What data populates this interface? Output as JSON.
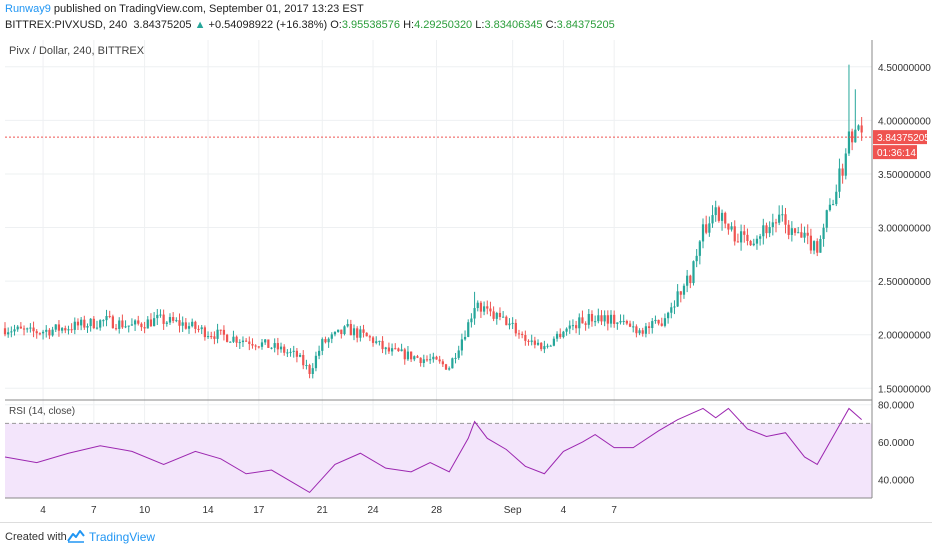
{
  "header": {
    "author": "Runway9",
    "published": "published on TradingView.com, September 01, 2017 13:23 EST",
    "symbol": "BITTREX:PIVXUSD, 240",
    "last": "3.84375205",
    "change": "+0.54098922 (+16.38%)",
    "o_label": "O:",
    "o_val": "3.95538576",
    "h_label": "H:",
    "h_val": "4.29250320",
    "l_label": "L:",
    "l_val": "3.83406345",
    "c_label": "C:",
    "c_val": "3.84375205"
  },
  "footer": {
    "created_with": "Created with",
    "brand": "TradingView"
  },
  "colors": {
    "up": "#26a69a",
    "down": "#ef5350",
    "rsi": "#9c27b0",
    "last": "#ef5350"
  },
  "chart_data": [
    {
      "type": "candlestick",
      "title": "Pivx / Dollar, 240, BITTREX",
      "ylim": [
        1.4,
        4.75
      ],
      "y_ticks": [
        1.5,
        2.0,
        2.5,
        3.0,
        3.5,
        4.0,
        4.5
      ],
      "y_tick_labels": [
        "1.50000000",
        "2.00000000",
        "2.50000000",
        "3.00000000",
        "3.50000000",
        "4.00000000",
        "4.50000000"
      ],
      "last_price": "3.84375205",
      "countdown": "01:36:14",
      "x_tick_labels": [
        "4",
        "7",
        "10",
        "14",
        "17",
        "21",
        "24",
        "28",
        "Sep",
        "4",
        "7"
      ],
      "close_path": [
        [
          0,
          2.06
        ],
        [
          8,
          2.02
        ],
        [
          16,
          2.05
        ],
        [
          24,
          2.09
        ],
        [
          32,
          2.13
        ],
        [
          40,
          2.08
        ],
        [
          48,
          2.14
        ],
        [
          56,
          2.1
        ],
        [
          64,
          2.02
        ],
        [
          72,
          1.97
        ],
        [
          79,
          1.93
        ],
        [
          86,
          1.87
        ],
        [
          92,
          1.8
        ],
        [
          96,
          1.66
        ],
        [
          100,
          1.92
        ],
        [
          108,
          2.05
        ],
        [
          116,
          1.95
        ],
        [
          120,
          1.85
        ],
        [
          128,
          1.8
        ],
        [
          134,
          1.76
        ],
        [
          140,
          1.7
        ],
        [
          146,
          2.1
        ],
        [
          148,
          2.28
        ],
        [
          152,
          2.2
        ],
        [
          158,
          2.12
        ],
        [
          164,
          1.97
        ],
        [
          170,
          1.88
        ],
        [
          176,
          2.05
        ],
        [
          182,
          2.13
        ],
        [
          188,
          2.18
        ],
        [
          194,
          2.11
        ],
        [
          200,
          2.05
        ],
        [
          206,
          2.09
        ],
        [
          210,
          2.28
        ],
        [
          216,
          2.55
        ],
        [
          220,
          2.95
        ],
        [
          224,
          3.18
        ],
        [
          228,
          2.98
        ],
        [
          232,
          2.9
        ],
        [
          236,
          2.92
        ],
        [
          240,
          3.0
        ],
        [
          244,
          3.08
        ],
        [
          248,
          2.95
        ],
        [
          252,
          2.88
        ],
        [
          256,
          2.83
        ],
        [
          260,
          3.2
        ],
        [
          264,
          3.55
        ],
        [
          266,
          3.92
        ],
        [
          268,
          3.88
        ],
        [
          270,
          3.84
        ]
      ],
      "extreme_highs": [
        [
          148,
          2.4
        ],
        [
          224,
          3.25
        ],
        [
          266,
          4.52
        ],
        [
          268,
          4.29
        ]
      ]
    },
    {
      "type": "line",
      "title": "RSI (14, close)",
      "ylim": [
        30,
        82
      ],
      "y_ticks": [
        40,
        60,
        80
      ],
      "y_tick_labels": [
        "40.0000",
        "60.0000",
        "80.0000"
      ],
      "band": [
        30,
        70
      ],
      "values": [
        [
          0,
          52
        ],
        [
          10,
          49
        ],
        [
          20,
          54
        ],
        [
          30,
          58
        ],
        [
          40,
          55
        ],
        [
          50,
          48
        ],
        [
          60,
          55
        ],
        [
          68,
          51
        ],
        [
          76,
          43
        ],
        [
          84,
          45
        ],
        [
          92,
          37
        ],
        [
          96,
          33
        ],
        [
          104,
          48
        ],
        [
          112,
          54
        ],
        [
          120,
          46
        ],
        [
          128,
          44
        ],
        [
          134,
          49
        ],
        [
          140,
          44
        ],
        [
          146,
          62
        ],
        [
          148,
          71
        ],
        [
          152,
          62
        ],
        [
          158,
          56
        ],
        [
          164,
          47
        ],
        [
          170,
          43
        ],
        [
          176,
          55
        ],
        [
          182,
          60
        ],
        [
          186,
          64
        ],
        [
          192,
          57
        ],
        [
          198,
          57
        ],
        [
          206,
          66
        ],
        [
          212,
          72
        ],
        [
          220,
          78
        ],
        [
          224,
          73
        ],
        [
          228,
          78
        ],
        [
          234,
          67
        ],
        [
          240,
          63
        ],
        [
          246,
          65
        ],
        [
          252,
          52
        ],
        [
          256,
          48
        ],
        [
          262,
          66
        ],
        [
          266,
          78
        ],
        [
          270,
          72
        ]
      ]
    }
  ]
}
